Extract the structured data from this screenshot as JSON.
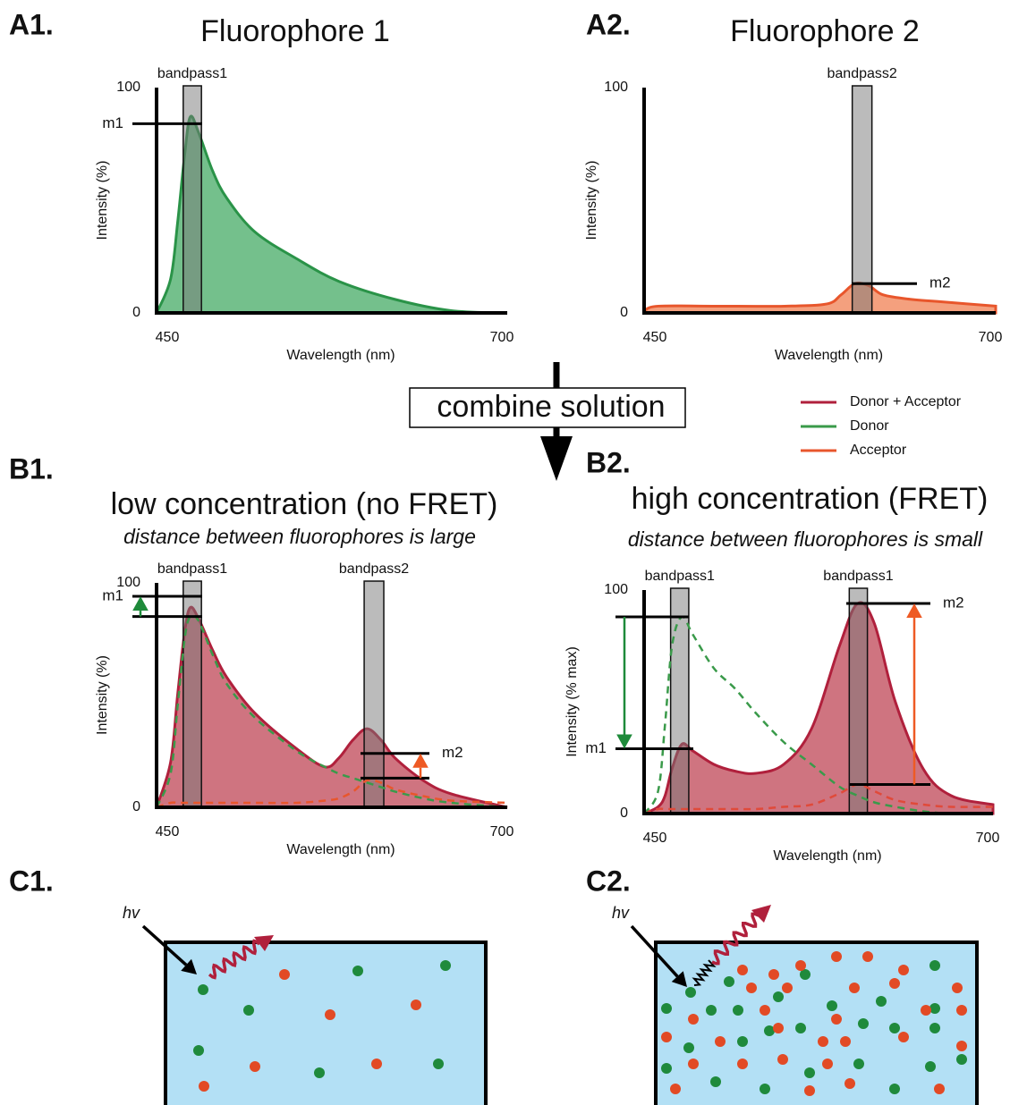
{
  "chart_data": [
    {
      "type": "area",
      "label": "A1.",
      "title": "Fluorophore 1",
      "x_label": "Wavelength (nm)",
      "y_label": "Intensity (%)",
      "x": [
        450,
        460,
        465,
        470,
        474,
        480,
        490,
        500,
        520,
        550,
        580,
        620,
        660,
        700
      ],
      "values": [
        0,
        15,
        40,
        70,
        87,
        80,
        63,
        51,
        36,
        24,
        14,
        6,
        1,
        0
      ],
      "color": "#2a9348",
      "fill": "#74c08c",
      "xlim": [
        450,
        700
      ],
      "ylim": [
        0,
        100
      ],
      "xticks": [
        450,
        700
      ],
      "yticks": [
        0,
        100
      ],
      "bands": [
        {
          "label": "bandpass1",
          "range": [
            469,
            482
          ]
        }
      ],
      "markers": [
        {
          "label": "m1",
          "value": 84
        }
      ]
    },
    {
      "type": "area",
      "label": "A2.",
      "title": "Fluorophore 2",
      "x_label": "Wavelength (nm)",
      "y_label": "Intensity (%)",
      "x": [
        450,
        460,
        500,
        550,
        580,
        590,
        600,
        610,
        620,
        640,
        660,
        700
      ],
      "values": [
        1,
        3,
        3,
        3,
        4,
        8,
        13,
        12,
        8,
        6,
        5,
        3
      ],
      "color": "#e8562c",
      "fill": "#f4a07e",
      "xlim": [
        450,
        700
      ],
      "ylim": [
        0,
        100
      ],
      "xticks": [
        450,
        700
      ],
      "yticks": [
        0,
        100
      ],
      "bands": [
        {
          "label": "bandpass2",
          "range": [
            598,
            612
          ]
        }
      ],
      "markers": [
        {
          "label": "m2",
          "value": 13
        }
      ]
    },
    {
      "type": "area",
      "label": "B1.",
      "title": "low concentration (no FRET)",
      "subtitle": "distance between fluorophores is large",
      "x_label": "Wavelength (nm)",
      "y_label": "Intensity (%)",
      "x": [
        450,
        460,
        465,
        470,
        474,
        480,
        490,
        500,
        520,
        550,
        570,
        580,
        590,
        600,
        610,
        620,
        640,
        660,
        700
      ],
      "series": [
        {
          "name": "Donor + Acceptor",
          "color": "#b0203c",
          "fill": "#cf7480",
          "values": [
            0,
            20,
            50,
            78,
            89,
            84,
            70,
            58,
            42,
            26,
            18,
            22,
            30,
            35,
            30,
            22,
            12,
            6,
            0
          ]
        },
        {
          "name": "Donor",
          "color": "#3a9a4a",
          "dash": true,
          "values": [
            0,
            15,
            45,
            75,
            85,
            83,
            68,
            55,
            40,
            25,
            18,
            15,
            13,
            11,
            9,
            7,
            4,
            2,
            0
          ]
        },
        {
          "name": "Acceptor",
          "color": "#e8562c",
          "dash": true,
          "values": [
            0,
            2,
            2,
            2,
            2,
            2,
            2,
            2,
            2,
            2,
            3,
            4,
            7,
            12,
            11,
            8,
            5,
            3,
            2
          ]
        }
      ],
      "xlim": [
        450,
        700
      ],
      "ylim": [
        0,
        100
      ],
      "xticks": [
        450,
        700
      ],
      "yticks": [
        0,
        100
      ],
      "bands": [
        {
          "label": "bandpass1",
          "range": [
            469,
            482
          ]
        },
        {
          "label": "bandpass2",
          "range": [
            598,
            612
          ]
        }
      ],
      "markers": [
        {
          "label": "m1",
          "value": 94
        },
        {
          "value": 85
        },
        {
          "label": "m2",
          "value": 24
        },
        {
          "value": 13
        }
      ]
    },
    {
      "type": "area",
      "label": "B2.",
      "title": "high concentration (FRET)",
      "subtitle": "distance between fluorophores is small",
      "x_label": "Wavelength (nm)",
      "y_label": "Intensity (% max)",
      "x": [
        450,
        460,
        465,
        470,
        477,
        485,
        500,
        515,
        530,
        550,
        570,
        590,
        603,
        615,
        630,
        650,
        670,
        700
      ],
      "series": [
        {
          "color": "#b0203c",
          "fill": "#cf7480",
          "values": [
            0,
            3,
            8,
            20,
            31,
            28,
            22,
            19,
            18,
            22,
            38,
            75,
            94,
            85,
            50,
            20,
            8,
            4
          ]
        },
        {
          "color": "#3a9a4a",
          "dash": true,
          "values": [
            0,
            10,
            40,
            75,
            88,
            80,
            65,
            56,
            45,
            32,
            22,
            12,
            8,
            5,
            3,
            1,
            0,
            0
          ]
        },
        {
          "color": "#e04a3a",
          "dash": true,
          "values": [
            0,
            2,
            2,
            2,
            2,
            2,
            2,
            2,
            2,
            3,
            4,
            9,
            13,
            10,
            6,
            4,
            3,
            3
          ]
        }
      ],
      "xlim": [
        450,
        700
      ],
      "ylim": [
        0,
        100
      ],
      "xticks": [
        450,
        700
      ],
      "yticks": [
        0,
        100
      ],
      "bands": [
        {
          "label": "bandpass1",
          "range": [
            469,
            482
          ]
        },
        {
          "label": "bandpass1",
          "range": [
            597,
            610
          ]
        }
      ],
      "markers": [
        {
          "label": "m1",
          "value": 29
        },
        {
          "value": 88
        },
        {
          "label": "m2",
          "value": 94
        },
        {
          "value": 13
        }
      ]
    }
  ],
  "combine_label": "combine solution",
  "schematic": [
    {
      "label": "C1.",
      "light": "hv"
    },
    {
      "label": "C2.",
      "light": "hv"
    }
  ]
}
